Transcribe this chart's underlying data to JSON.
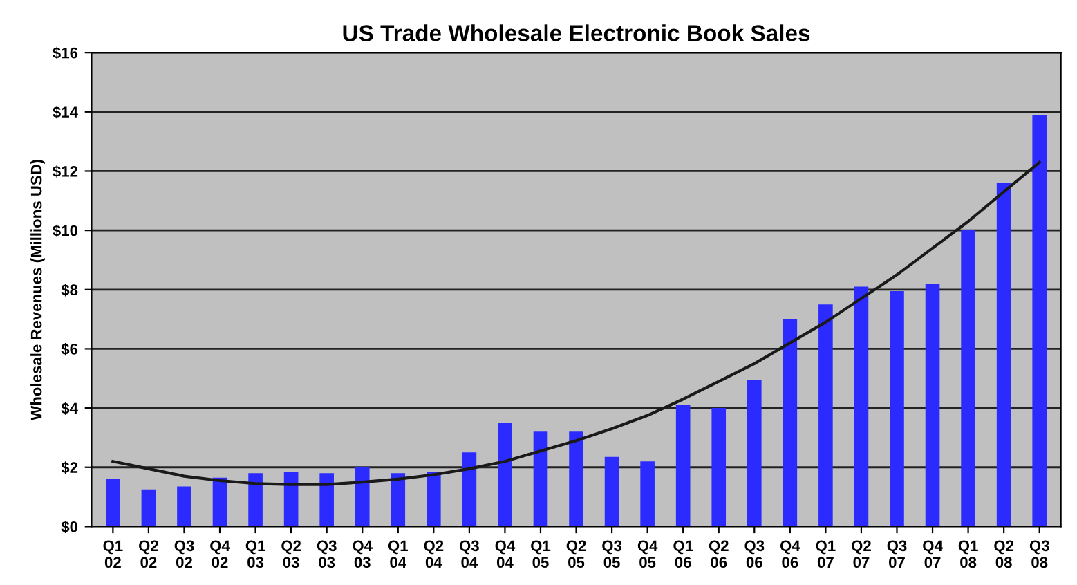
{
  "chart_data": {
    "type": "bar",
    "title": "US Trade Wholesale Electronic Book Sales",
    "ylabel": "Wholesale Revenues (Millions USD)",
    "categories": [
      "Q1\n02",
      "Q2\n02",
      "Q3\n02",
      "Q4\n02",
      "Q1\n03",
      "Q2\n03",
      "Q3\n03",
      "Q4\n03",
      "Q1\n04",
      "Q2\n04",
      "Q3\n04",
      "Q4\n04",
      "Q1\n05",
      "Q2\n05",
      "Q3\n05",
      "Q4\n05",
      "Q1\n06",
      "Q2\n06",
      "Q3\n06",
      "Q4\n06",
      "Q1\n07",
      "Q2\n07",
      "Q3\n07",
      "Q4\n07",
      "Q1\n08",
      "Q2\n08",
      "Q3\n08"
    ],
    "series": [
      {
        "color": "#2b2bff",
        "values": [
          1.6,
          1.25,
          1.35,
          1.65,
          1.8,
          1.85,
          1.8,
          2.0,
          1.8,
          1.85,
          2.5,
          3.5,
          3.2,
          3.2,
          2.35,
          2.2,
          4.1,
          4.0,
          4.95,
          7.0,
          7.5,
          8.1,
          7.95,
          8.2,
          10.0,
          11.6,
          13.9
        ]
      },
      {
        "type": "line",
        "color": "#1a1a1a",
        "values": [
          2.2,
          1.95,
          1.7,
          1.55,
          1.45,
          1.42,
          1.42,
          1.5,
          1.6,
          1.75,
          1.95,
          2.2,
          2.55,
          2.9,
          3.3,
          3.75,
          4.3,
          4.9,
          5.5,
          6.2,
          6.9,
          7.7,
          8.5,
          9.4,
          10.3,
          11.3,
          12.3
        ]
      }
    ],
    "ylim": [
      0,
      16
    ],
    "yticks": [
      {
        "value": 0,
        "label": "$0"
      },
      {
        "value": 2,
        "label": "$2"
      },
      {
        "value": 4,
        "label": "$4"
      },
      {
        "value": 6,
        "label": "$6"
      },
      {
        "value": 8,
        "label": "$8"
      },
      {
        "value": 10,
        "label": "$10"
      },
      {
        "value": 12,
        "label": "$12"
      },
      {
        "value": 14,
        "label": "$14"
      },
      {
        "value": 16,
        "label": "$16"
      }
    ],
    "grid": "y",
    "marker": "none",
    "line_style": "solid"
  }
}
